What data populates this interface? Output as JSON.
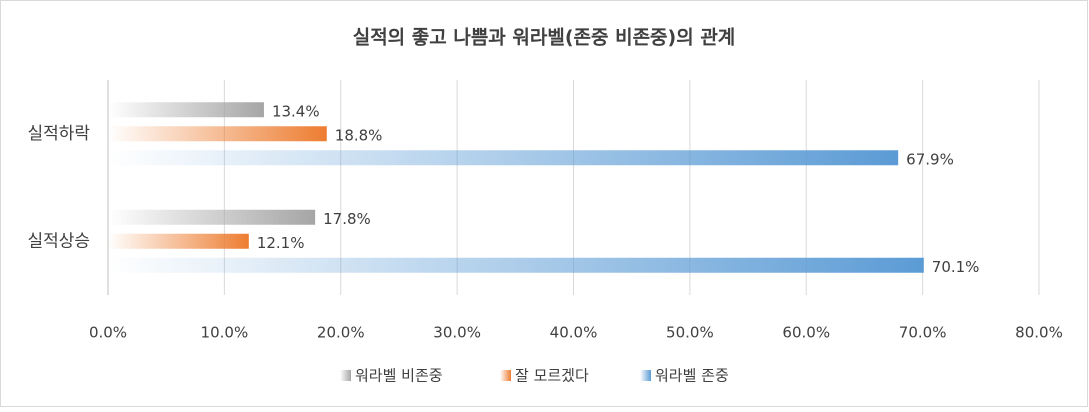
{
  "chart_data": {
    "type": "bar",
    "orientation": "horizontal",
    "title": "실적의 좋고 나쁨과 워라벨(존중 비존중)의 관계",
    "categories": [
      "실적하락",
      "실적상승"
    ],
    "series": [
      {
        "name": "워라벨 비존중",
        "color": "#a5a5a5",
        "values": [
          13.4,
          17.8
        ],
        "value_labels": [
          "13.4%",
          "17.8%"
        ]
      },
      {
        "name": "잘 모르겠다",
        "color": "#ed7d31",
        "values": [
          18.8,
          12.1
        ],
        "value_labels": [
          "18.8%",
          "12.1%"
        ]
      },
      {
        "name": "워라벨 존중",
        "color": "#5b9bd5",
        "values": [
          67.9,
          70.1
        ],
        "value_labels": [
          "67.9%",
          "70.1%"
        ]
      }
    ],
    "xlim": [
      0,
      80
    ],
    "xticks": [
      {
        "value": 0,
        "label": "0.0%"
      },
      {
        "value": 10,
        "label": "10.0%"
      },
      {
        "value": 20,
        "label": "20.0%"
      },
      {
        "value": 30,
        "label": "30.0%"
      },
      {
        "value": 40,
        "label": "40.0%"
      },
      {
        "value": 50,
        "label": "50.0%"
      },
      {
        "value": 60,
        "label": "60.0%"
      },
      {
        "value": 70,
        "label": "70.0%"
      },
      {
        "value": 80,
        "label": "80.0%"
      }
    ],
    "grid": true,
    "legend": "bottom"
  }
}
